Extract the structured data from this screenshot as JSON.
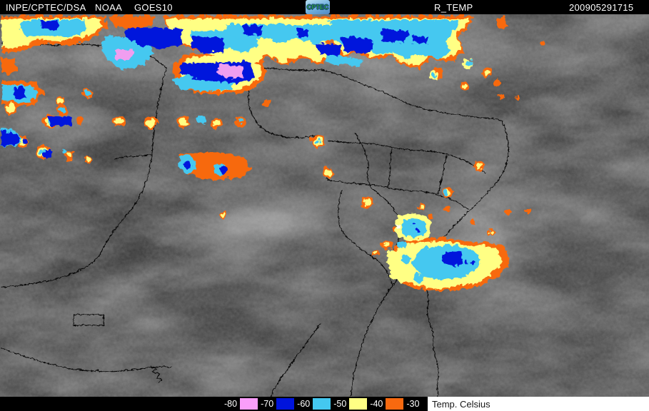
{
  "header": {
    "agency": "INPE/CPTEC/DSA",
    "network": "NOAA",
    "satellite": "GOES10",
    "logo_text": "CPTEC",
    "product": "R_TEMP",
    "timestamp": "200905291715"
  },
  "legend": {
    "title": "Temp. Celsius",
    "items": [
      {
        "label": "-80",
        "color": "#fa9efa"
      },
      {
        "label": "-70",
        "color": "#0014dc"
      },
      {
        "label": "-60",
        "color": "#44c8f0"
      },
      {
        "label": "-50",
        "color": "#ffff84"
      },
      {
        "label": "-40",
        "color": "#f7690f"
      },
      {
        "label": "-30",
        "color": null
      }
    ]
  },
  "colors": {
    "bar_background": "#000000",
    "bar_text": "#ffffff",
    "legend_title_background": "#ffffff",
    "legend_title_text": "#161616",
    "cloud_pink": "#f09ef0",
    "cloud_blue": "#0014dc",
    "cloud_cyan": "#44c8f0",
    "cloud_yellow": "#ffff84",
    "cloud_orange": "#f7690f",
    "map_border": "#050505",
    "map_base_gray": "#4a4a4a"
  }
}
